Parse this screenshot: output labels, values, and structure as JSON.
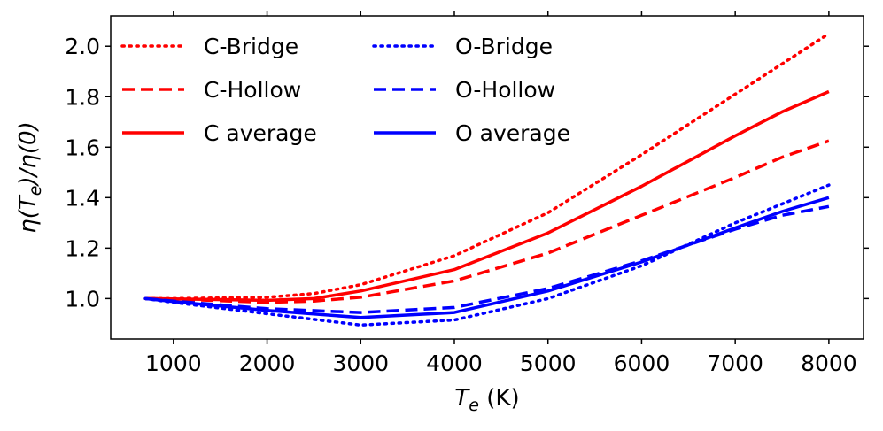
{
  "chart_data": {
    "type": "line",
    "title": "",
    "xlabel_symbol": "T",
    "xlabel_subscript": "e",
    "xlabel_unit": " (K)",
    "ylabel_parts": [
      "η(T",
      "e",
      ")/η(0)"
    ],
    "xlim": [
      330,
      8370
    ],
    "ylim": [
      0.84,
      2.12
    ],
    "xticks": [
      1000,
      2000,
      3000,
      4000,
      5000,
      6000,
      7000,
      8000
    ],
    "xtick_labels": [
      "1000",
      "2000",
      "3000",
      "4000",
      "5000",
      "6000",
      "7000",
      "8000"
    ],
    "yticks": [
      1.0,
      1.2,
      1.4,
      1.6,
      1.8,
      2.0
    ],
    "ytick_labels": [
      "1.0",
      "1.2",
      "1.4",
      "1.6",
      "1.8",
      "2.0"
    ],
    "grid": false,
    "legend_position": "top-left",
    "series": [
      {
        "name": "C-Bridge",
        "color": "#ff0000",
        "style": "dotted",
        "x": [
          700,
          1000,
          2000,
          2500,
          3000,
          4000,
          5000,
          6000,
          7000,
          8000
        ],
        "y": [
          1.0,
          1.0,
          1.005,
          1.02,
          1.055,
          1.17,
          1.34,
          1.57,
          1.81,
          2.05
        ]
      },
      {
        "name": "C-Hollow",
        "color": "#ff0000",
        "style": "dashed",
        "x": [
          700,
          1000,
          2000,
          2500,
          3000,
          4000,
          5000,
          6000,
          7000,
          7500,
          8000
        ],
        "y": [
          1.0,
          0.998,
          0.985,
          0.99,
          1.005,
          1.07,
          1.18,
          1.33,
          1.48,
          1.56,
          1.625
        ]
      },
      {
        "name": "C average",
        "color": "#ff0000",
        "style": "solid",
        "x": [
          700,
          1000,
          2000,
          2500,
          3000,
          4000,
          5000,
          6000,
          7000,
          7500,
          8000
        ],
        "y": [
          1.0,
          0.999,
          0.993,
          1.0,
          1.03,
          1.115,
          1.26,
          1.445,
          1.645,
          1.74,
          1.82
        ]
      },
      {
        "name": "O-Bridge",
        "color": "#0000ff",
        "style": "dotted",
        "x": [
          700,
          1000,
          2000,
          3000,
          4000,
          5000,
          6000,
          7000,
          8000
        ],
        "y": [
          1.0,
          0.985,
          0.94,
          0.895,
          0.915,
          1.0,
          1.13,
          1.3,
          1.45
        ]
      },
      {
        "name": "O-Hollow",
        "color": "#0000ff",
        "style": "dashed",
        "x": [
          700,
          1000,
          2000,
          3000,
          4000,
          5000,
          6000,
          7000,
          7500,
          8000
        ],
        "y": [
          1.0,
          0.99,
          0.96,
          0.945,
          0.965,
          1.04,
          1.15,
          1.275,
          1.33,
          1.365
        ]
      },
      {
        "name": "O average",
        "color": "#0000ff",
        "style": "solid",
        "x": [
          700,
          1000,
          2000,
          3000,
          4000,
          5000,
          6000,
          7000,
          7500,
          8000
        ],
        "y": [
          1.0,
          0.988,
          0.953,
          0.925,
          0.945,
          1.03,
          1.145,
          1.28,
          1.345,
          1.4
        ]
      }
    ]
  }
}
